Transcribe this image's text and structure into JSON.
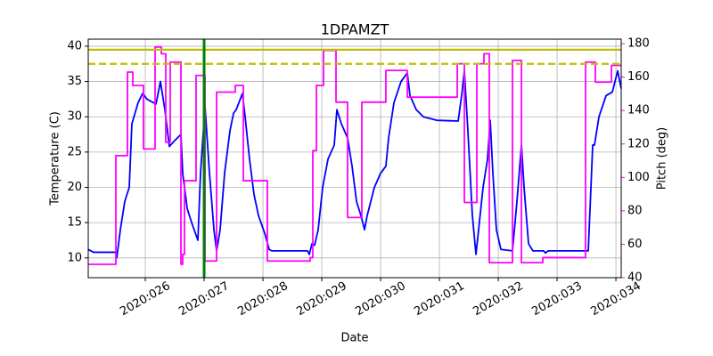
{
  "chart_data": {
    "type": "line",
    "title": "1DPAMZT",
    "xlabel": "Date",
    "ylabel": "Temperature (C)",
    "y2label": "Pitch (deg)",
    "y2color": "#ff00ff",
    "grid": true,
    "xlim": [
      25.03,
      34.09
    ],
    "ylim": [
      7.2,
      41.0
    ],
    "y2lim": [
      40,
      182.7
    ],
    "xticks": [
      {
        "value": 26,
        "label": "2020:026"
      },
      {
        "value": 27,
        "label": "2020:027"
      },
      {
        "value": 28,
        "label": "2020:028"
      },
      {
        "value": 29,
        "label": "2020:029"
      },
      {
        "value": 30,
        "label": "2020:030"
      },
      {
        "value": 31,
        "label": "2020:031"
      },
      {
        "value": 32,
        "label": "2020:032"
      },
      {
        "value": 33,
        "label": "2020:033"
      },
      {
        "value": 34,
        "label": "2020:034"
      }
    ],
    "yticks": [
      10,
      15,
      20,
      25,
      30,
      35,
      40
    ],
    "y2ticks": [
      40,
      60,
      80,
      100,
      120,
      140,
      160,
      180
    ],
    "hlines": [
      {
        "value": 39.5,
        "color": "#bfbf00",
        "style": "solid"
      },
      {
        "value": 37.5,
        "color": "#bfbf00",
        "style": "dashed"
      }
    ],
    "vlines": [
      {
        "value": 27.0,
        "color": "#008000",
        "style": "solid"
      }
    ],
    "series": [
      {
        "color": "#0000ff",
        "axis": "y",
        "x": [
          25.03,
          25.121,
          25.5,
          25.515,
          25.576,
          25.651,
          25.727,
          25.772,
          25.878,
          25.954,
          26.03,
          26.182,
          26.257,
          26.333,
          26.409,
          26.485,
          26.606,
          26.636,
          26.712,
          26.788,
          26.894,
          26.939,
          27.015,
          27.091,
          27.167,
          27.212,
          27.272,
          27.348,
          27.439,
          27.5,
          27.545,
          27.651,
          27.697,
          27.772,
          27.848,
          27.924,
          28.03,
          28.106,
          28.151,
          28.757,
          28.788,
          28.833,
          28.878,
          28.939,
          29.015,
          29.106,
          29.212,
          29.257,
          29.333,
          29.439,
          29.515,
          29.591,
          29.666,
          29.727,
          29.772,
          29.894,
          30.0,
          30.09,
          30.136,
          30.227,
          30.348,
          30.454,
          30.5,
          30.606,
          30.727,
          30.954,
          31.318,
          31.378,
          31.424,
          31.484,
          31.56,
          31.621,
          31.666,
          31.742,
          31.818,
          31.863,
          31.909,
          31.969,
          32.045,
          32.242,
          32.318,
          32.394,
          32.439,
          32.515,
          32.59,
          32.772,
          32.803,
          32.848,
          33.53,
          33.606,
          33.636,
          33.712,
          33.833,
          33.939,
          34.03,
          34.09
        ],
        "values": [
          11.2,
          10.8,
          10.8,
          10,
          14,
          18,
          20,
          29,
          32,
          33.3,
          32.5,
          31.8,
          35,
          31,
          25.8,
          26.5,
          27.5,
          22,
          17,
          15,
          12.5,
          22,
          31.5,
          22,
          14,
          11,
          14,
          22,
          28,
          30.5,
          31,
          33.3,
          30,
          24,
          19,
          16,
          13.5,
          11.2,
          11,
          11,
          10.5,
          12,
          11.8,
          14,
          20,
          24,
          26,
          31,
          29,
          27,
          23,
          18,
          16,
          14,
          16,
          20,
          22,
          23,
          27,
          32,
          35,
          36.2,
          33,
          31,
          30,
          29.5,
          29.4,
          33,
          36.5,
          28,
          16,
          10.5,
          14,
          20,
          24,
          29.5,
          22,
          14,
          11.2,
          11,
          18,
          26,
          20,
          12,
          11,
          11,
          10.7,
          11,
          11,
          26,
          26,
          30,
          33,
          33.5,
          36.5,
          34
        ]
      },
      {
        "color": "#ff00ff",
        "axis": "y2",
        "x": [
          25.03,
          25.5,
          25.5,
          25.697,
          25.697,
          25.788,
          25.788,
          25.969,
          25.969,
          26.166,
          26.166,
          26.272,
          26.272,
          26.348,
          26.348,
          26.424,
          26.424,
          26.606,
          26.606,
          26.636,
          26.636,
          26.666,
          26.666,
          26.863,
          26.863,
          27.015,
          27.015,
          27.212,
          27.212,
          27.53,
          27.53,
          27.666,
          27.666,
          28.075,
          28.075,
          28.803,
          28.803,
          28.848,
          28.848,
          28.909,
          28.909,
          29.03,
          29.03,
          29.242,
          29.242,
          29.439,
          29.439,
          29.681,
          29.681,
          30.09,
          30.09,
          30.454,
          30.454,
          31.303,
          31.303,
          31.424,
          31.424,
          31.636,
          31.636,
          31.757,
          31.757,
          31.848,
          31.848,
          32.242,
          32.242,
          32.394,
          32.394,
          32.757,
          32.757,
          33.484,
          33.484,
          33.651,
          33.651,
          33.924,
          33.924,
          34.09
        ],
        "values": [
          48,
          48,
          113,
          113,
          163,
          163,
          155,
          155,
          117,
          117,
          178,
          178,
          174,
          174,
          121,
          121,
          169,
          169,
          48,
          48,
          54,
          54,
          98,
          98,
          161,
          161,
          50,
          50,
          151,
          151,
          155,
          155,
          98,
          98,
          50,
          50,
          52,
          52,
          116,
          116,
          155,
          155,
          176,
          176,
          145,
          145,
          76,
          76,
          145,
          145,
          164,
          164,
          148,
          148,
          168,
          168,
          85,
          85,
          168,
          168,
          174,
          174,
          49,
          49,
          170,
          170,
          49,
          49,
          52,
          52,
          169,
          169,
          157,
          157,
          167,
          167
        ]
      }
    ]
  }
}
